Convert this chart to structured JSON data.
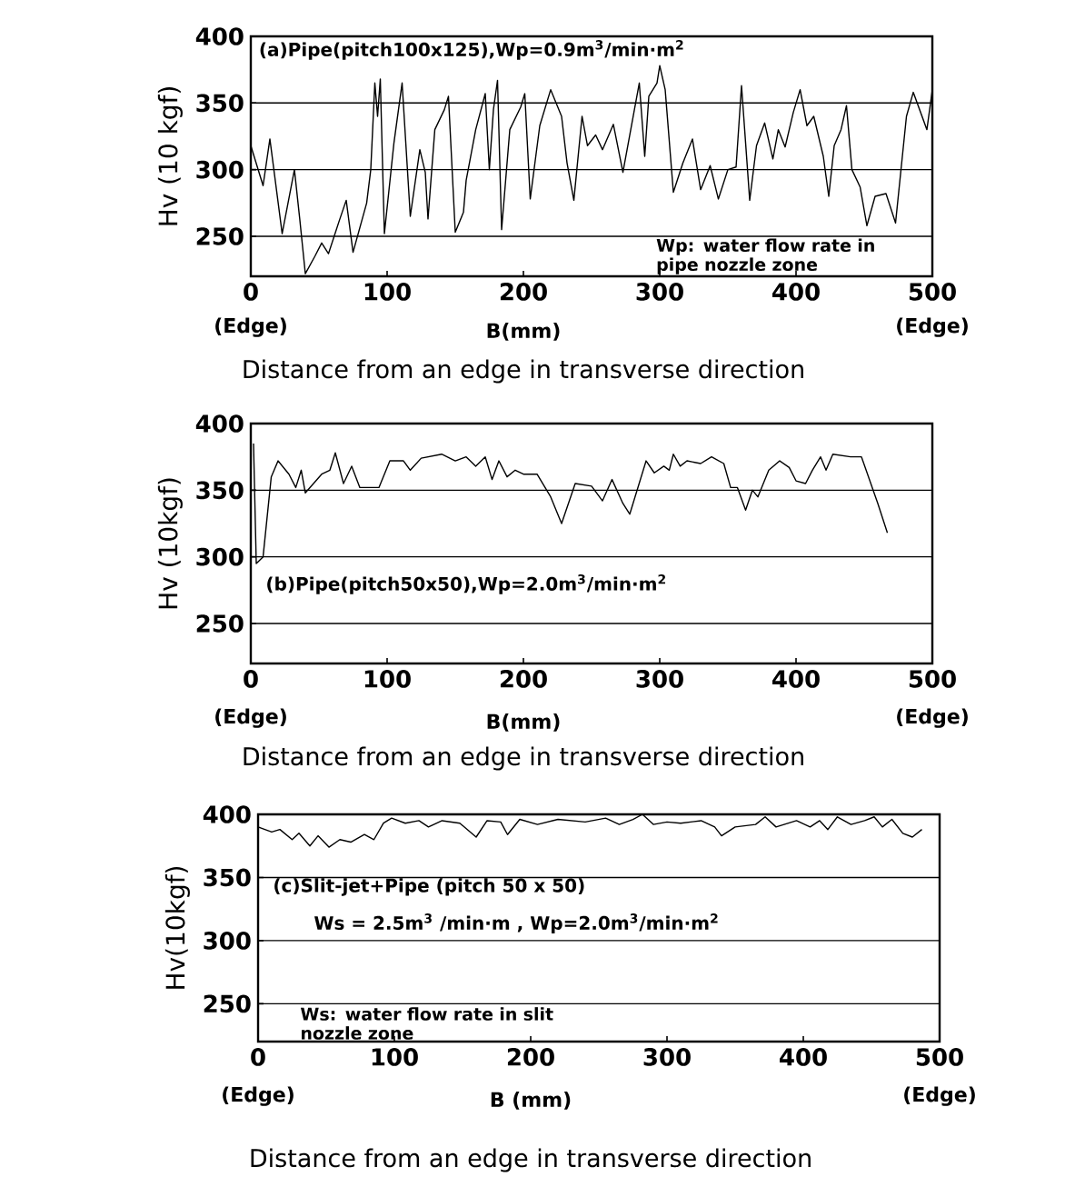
{
  "chart_data": [
    {
      "type": "line",
      "xlabel": "B(mm)",
      "ylabel": "Hv (10 kgf)",
      "color": "#000000",
      "grid": "y",
      "xlim": [
        0,
        500
      ],
      "xticks": [
        0,
        100,
        200,
        300,
        400,
        500
      ],
      "ylim": [
        220,
        400
      ],
      "yticks": [
        250,
        300,
        350,
        400
      ],
      "annotations": [
        "(a)Pipe(pitch100x125),Wp=0.9m$^{3}$/min·m$^{2}$",
        "Wp: water flow rate in pipe nozzle zone",
        "(Edge)",
        "(Edge)",
        "Distance from an  edge in transverse direction"
      ],
      "x": [
        0,
        9,
        14,
        23,
        32,
        36,
        40,
        47,
        52,
        57,
        65,
        70,
        75,
        85,
        88,
        91,
        93,
        95,
        98,
        105,
        111,
        117,
        124,
        128,
        130,
        135,
        142,
        145,
        150,
        156,
        158,
        165,
        172,
        175,
        178,
        181,
        184,
        190,
        198,
        201,
        205,
        212,
        220,
        228,
        232,
        237,
        243,
        247,
        253,
        258,
        266,
        273,
        285,
        289,
        292,
        298,
        300,
        304,
        310,
        317,
        324,
        330,
        337,
        343,
        350,
        356,
        360,
        366,
        371,
        377,
        383,
        387,
        392,
        398,
        403,
        408,
        413,
        420,
        424,
        428,
        433,
        437,
        441,
        447,
        452,
        458,
        466,
        473,
        481,
        486,
        496,
        500
      ],
      "values": [
        318,
        288,
        323,
        252,
        300,
        262,
        222,
        235,
        245,
        237,
        262,
        277,
        238,
        275,
        300,
        365,
        340,
        368,
        252,
        320,
        365,
        265,
        315,
        298,
        263,
        330,
        345,
        355,
        253,
        268,
        292,
        330,
        357,
        300,
        345,
        367,
        255,
        330,
        347,
        357,
        278,
        333,
        360,
        340,
        305,
        277,
        340,
        318,
        326,
        315,
        334,
        298,
        365,
        310,
        355,
        365,
        378,
        360,
        283,
        305,
        323,
        285,
        303,
        278,
        300,
        302,
        363,
        277,
        318,
        335,
        308,
        330,
        317,
        343,
        360,
        333,
        340,
        310,
        280,
        318,
        330,
        348,
        300,
        287,
        258,
        280,
        282,
        260,
        340,
        358,
        330,
        360
      ]
    },
    {
      "type": "line",
      "xlabel": "B(mm)",
      "ylabel": "Hv (10kgf)",
      "color": "#000000",
      "grid": "y",
      "xlim": [
        0,
        500
      ],
      "xticks": [
        0,
        100,
        200,
        300,
        400,
        500
      ],
      "ylim": [
        220,
        400
      ],
      "yticks": [
        250,
        300,
        350,
        400
      ],
      "annotations": [
        "(b)Pipe(pitch50x50),Wp=2.0m$^{3}$/min·m$^{2}$",
        "(Edge)",
        "(Edge)",
        "Distance from  an  edge in transverse direction"
      ],
      "x": [
        2,
        4,
        9,
        15,
        20,
        28,
        33,
        37,
        40,
        46,
        52,
        58,
        62,
        68,
        74,
        80,
        94,
        102,
        112,
        117,
        125,
        140,
        150,
        158,
        165,
        172,
        177,
        182,
        188,
        194,
        200,
        210,
        220,
        228,
        238,
        250,
        258,
        265,
        273,
        278,
        290,
        296,
        303,
        307,
        310,
        315,
        320,
        330,
        338,
        347,
        352,
        357,
        363,
        368,
        372,
        380,
        388,
        395,
        400,
        407,
        412,
        418,
        422,
        427,
        440,
        448,
        460,
        467
      ],
      "values": [
        385,
        295,
        300,
        360,
        372,
        362,
        352,
        365,
        348,
        355,
        362,
        365,
        378,
        355,
        368,
        352,
        352,
        372,
        372,
        365,
        374,
        377,
        372,
        375,
        368,
        375,
        358,
        372,
        360,
        365,
        362,
        362,
        345,
        325,
        355,
        353,
        342,
        358,
        340,
        332,
        372,
        363,
        368,
        365,
        377,
        368,
        372,
        370,
        375,
        370,
        352,
        352,
        335,
        350,
        345,
        365,
        372,
        367,
        357,
        355,
        365,
        375,
        365,
        377,
        375,
        375,
        340,
        318
      ]
    },
    {
      "type": "line",
      "xlabel": "B (mm)",
      "ylabel": "Hv(10kgf)",
      "color": "#000000",
      "grid": "y",
      "xlim": [
        0,
        500
      ],
      "xticks": [
        0,
        100,
        200,
        300,
        400,
        500
      ],
      "ylim": [
        220,
        400
      ],
      "yticks": [
        250,
        300,
        350,
        400
      ],
      "annotations": [
        "(c)Slit-jet+Pipe (pitch 50 x 50)",
        "Ws = 2.5m$^{3}$ /min·m  , Wp=2.0m$^{3}$/min·m$^{2}$",
        "Ws: water flow rate in slit nozzle zone",
        "(Edge)",
        "(Edge)",
        "Distance from an edge in transverse direction"
      ],
      "x": [
        0,
        10,
        16,
        25,
        30,
        38,
        44,
        52,
        60,
        68,
        78,
        85,
        92,
        98,
        108,
        118,
        125,
        135,
        148,
        160,
        168,
        178,
        183,
        192,
        205,
        220,
        240,
        255,
        265,
        275,
        282,
        290,
        300,
        310,
        325,
        335,
        340,
        350,
        365,
        372,
        380,
        395,
        405,
        412,
        418,
        425,
        435,
        445,
        452,
        458,
        465,
        473,
        480,
        487
      ],
      "values": [
        390,
        386,
        388,
        380,
        385,
        375,
        383,
        374,
        380,
        378,
        384,
        380,
        393,
        397,
        393,
        395,
        390,
        395,
        393,
        382,
        395,
        394,
        384,
        396,
        392,
        396,
        394,
        397,
        392,
        396,
        400,
        392,
        394,
        393,
        395,
        390,
        383,
        390,
        392,
        398,
        390,
        395,
        390,
        395,
        388,
        398,
        392,
        395,
        398,
        390,
        396,
        385,
        382,
        388
      ]
    }
  ]
}
